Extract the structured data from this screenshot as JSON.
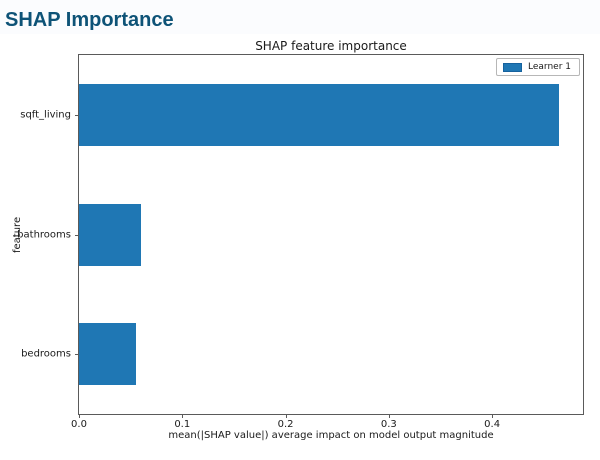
{
  "header": {
    "title": "SHAP Importance"
  },
  "theme": {
    "header_text_color": "#0e5377",
    "bar_color": "#1f77b4"
  },
  "chart_data": {
    "type": "bar",
    "orientation": "horizontal",
    "title": "SHAP feature importance",
    "categories": [
      "sqft_living",
      "bathrooms",
      "bedrooms"
    ],
    "values": [
      0.465,
      0.06,
      0.055
    ],
    "xlabel": "mean(|SHAP value|) average impact on model output magnitude",
    "ylabel": "feature",
    "xlim": [
      0,
      0.488
    ],
    "xtick_values": [
      0.0,
      0.1,
      0.2,
      0.3,
      0.4
    ],
    "xtick_labels": [
      "0.0",
      "0.1",
      "0.2",
      "0.3",
      "0.4"
    ],
    "grid": false,
    "legend": {
      "position": "upper right",
      "entries": [
        {
          "label": "Learner 1",
          "color": "#1f77b4"
        }
      ]
    }
  }
}
